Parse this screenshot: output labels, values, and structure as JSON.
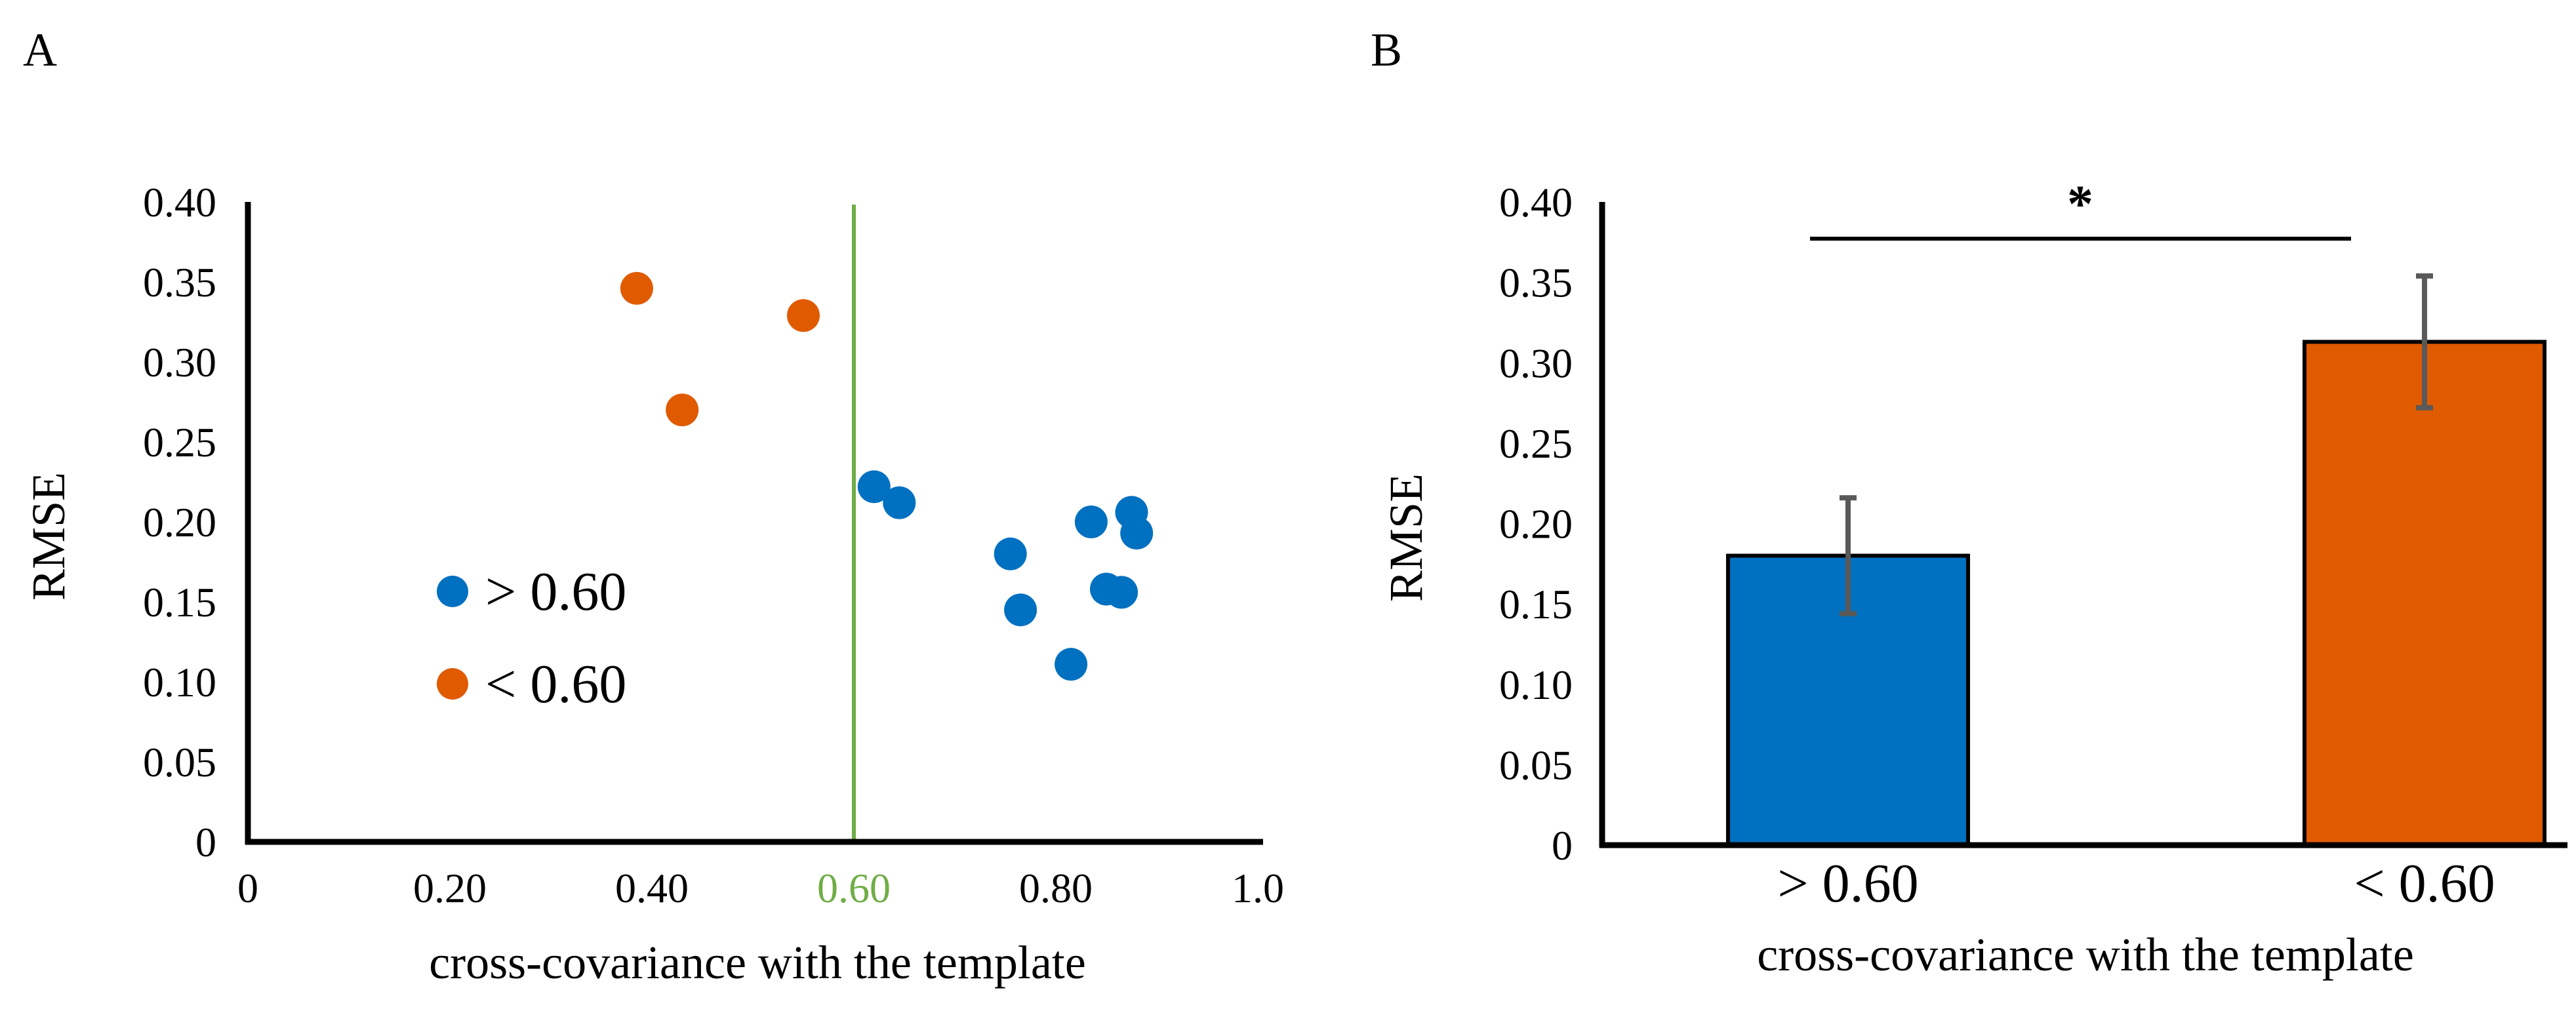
{
  "panels": {
    "a": {
      "label": "A"
    },
    "b": {
      "label": "B"
    }
  },
  "colors": {
    "above": "#0070c0",
    "below": "#e05a00",
    "threshold_line": "#70ad47",
    "axis": "#000000",
    "error_bar": "#595959"
  },
  "chart_data": [
    {
      "type": "scatter",
      "panel": "A",
      "xlabel": "cross-covariance with the template",
      "ylabel": "RMSE",
      "xlim": [
        0,
        1.0
      ],
      "ylim": [
        0,
        0.4
      ],
      "x_ticks": [
        {
          "value": 0,
          "label": "0"
        },
        {
          "value": 0.2,
          "label": "0.20"
        },
        {
          "value": 0.4,
          "label": "0.40"
        },
        {
          "value": 0.6,
          "label": "0.60",
          "highlight": true
        },
        {
          "value": 0.8,
          "label": "0.80"
        },
        {
          "value": 1.0,
          "label": "1.0"
        }
      ],
      "y_ticks": [
        {
          "value": 0,
          "label": "0"
        },
        {
          "value": 0.05,
          "label": "0.05"
        },
        {
          "value": 0.1,
          "label": "0.10"
        },
        {
          "value": 0.15,
          "label": "0.15"
        },
        {
          "value": 0.2,
          "label": "0.20"
        },
        {
          "value": 0.25,
          "label": "0.25"
        },
        {
          "value": 0.3,
          "label": "0.30"
        },
        {
          "value": 0.35,
          "label": "0.35"
        },
        {
          "value": 0.4,
          "label": "0.40"
        }
      ],
      "threshold": 0.6,
      "legend": {
        "placement": "center-left"
      },
      "series": [
        {
          "name": "> 0.60",
          "color": "#0070c0",
          "points": [
            {
              "x": 0.62,
              "y": 0.222
            },
            {
              "x": 0.645,
              "y": 0.212
            },
            {
              "x": 0.755,
              "y": 0.18
            },
            {
              "x": 0.765,
              "y": 0.145
            },
            {
              "x": 0.815,
              "y": 0.111
            },
            {
              "x": 0.835,
              "y": 0.2
            },
            {
              "x": 0.85,
              "y": 0.158
            },
            {
              "x": 0.865,
              "y": 0.156
            },
            {
              "x": 0.875,
              "y": 0.206
            },
            {
              "x": 0.88,
              "y": 0.193
            }
          ]
        },
        {
          "name": "< 0.60",
          "color": "#e05a00",
          "points": [
            {
              "x": 0.385,
              "y": 0.346
            },
            {
              "x": 0.43,
              "y": 0.27
            },
            {
              "x": 0.55,
              "y": 0.329
            }
          ]
        }
      ]
    },
    {
      "type": "bar",
      "panel": "B",
      "xlabel": "cross-covariance with the template",
      "ylabel": "RMSE",
      "ylim": [
        0,
        0.4
      ],
      "y_ticks": [
        {
          "value": 0,
          "label": "0"
        },
        {
          "value": 0.05,
          "label": "0.05"
        },
        {
          "value": 0.1,
          "label": "0.10"
        },
        {
          "value": 0.15,
          "label": "0.15"
        },
        {
          "value": 0.2,
          "label": "0.20"
        },
        {
          "value": 0.25,
          "label": "0.25"
        },
        {
          "value": 0.3,
          "label": "0.30"
        },
        {
          "value": 0.35,
          "label": "0.35"
        },
        {
          "value": 0.4,
          "label": "0.40"
        }
      ],
      "categories": [
        "> 0.60",
        "< 0.60"
      ],
      "values": [
        0.18,
        0.313
      ],
      "errors": [
        0.036,
        0.041
      ],
      "colors": [
        "#0070c0",
        "#e05a00"
      ],
      "significance": "*"
    }
  ]
}
